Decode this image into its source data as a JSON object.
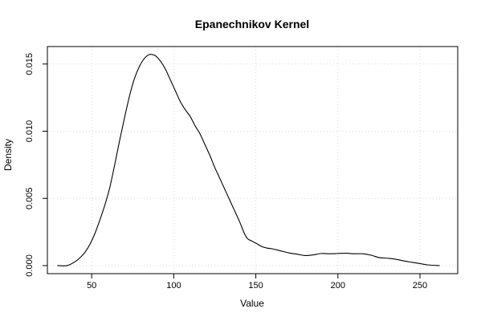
{
  "chart_data": {
    "type": "line",
    "title": "Epanechnikov Kernel",
    "xlabel": "Value",
    "ylabel": "Density",
    "xlim": [
      23,
      273
    ],
    "ylim": [
      -0.0006,
      0.0163
    ],
    "x_ticks": [
      50,
      100,
      150,
      200,
      250
    ],
    "x_tick_labels": [
      "50",
      "100",
      "150",
      "200",
      "250"
    ],
    "y_ticks": [
      0.0,
      0.005,
      0.01,
      0.015
    ],
    "y_tick_labels": [
      "0.000",
      "0.005",
      "0.010",
      "0.015"
    ],
    "grid": true,
    "line_color": "#000000",
    "series": [
      {
        "x": [
          29,
          35,
          40,
          43,
          46,
          49,
          52,
          55,
          58,
          61,
          64,
          67,
          70,
          73,
          76,
          79,
          82,
          85,
          87,
          89,
          92,
          95,
          98,
          101,
          104,
          107,
          110,
          113,
          116,
          119,
          122,
          125,
          128,
          131,
          134,
          137,
          140,
          143,
          145,
          148,
          151,
          154,
          157,
          160,
          165,
          170,
          175,
          180,
          185,
          190,
          195,
          200,
          205,
          210,
          215,
          220,
          225,
          230,
          235,
          240,
          245,
          250,
          255,
          262
        ],
        "y": [
          0.0,
          0.0,
          0.0003,
          0.0006,
          0.001,
          0.0016,
          0.0024,
          0.0034,
          0.0045,
          0.0058,
          0.0075,
          0.0093,
          0.011,
          0.0126,
          0.0139,
          0.0148,
          0.0154,
          0.0157,
          0.0157,
          0.0156,
          0.0152,
          0.0146,
          0.0138,
          0.013,
          0.0122,
          0.0116,
          0.0111,
          0.0104,
          0.0098,
          0.009,
          0.0082,
          0.0073,
          0.0065,
          0.0057,
          0.0049,
          0.0041,
          0.0033,
          0.0024,
          0.002,
          0.0018,
          0.0016,
          0.0014,
          0.0013,
          0.00125,
          0.0011,
          0.00095,
          0.00085,
          0.00075,
          0.0008,
          0.0009,
          0.00088,
          0.0009,
          0.00092,
          0.00088,
          0.00088,
          0.00078,
          0.0006,
          0.00055,
          0.00048,
          0.00035,
          0.00025,
          0.00015,
          5e-05,
          0.0
        ]
      }
    ]
  }
}
